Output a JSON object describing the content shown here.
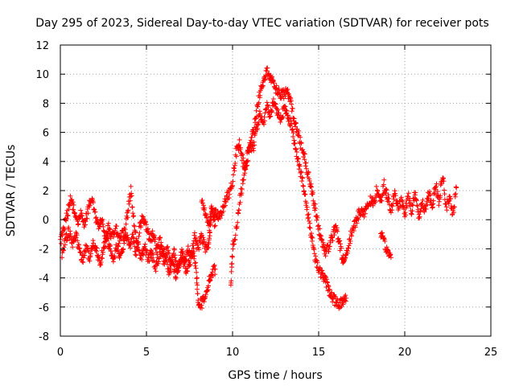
{
  "chart_data": {
    "type": "scatter",
    "title": "Day 295 of 2023, Sidereal Day-to-day VTEC variation (SDTVAR) for receiver pots",
    "xlabel": "GPS time / hours",
    "ylabel": "SDTVAR / TECUs",
    "xlim": [
      0,
      25
    ],
    "ylim": [
      -8,
      12
    ],
    "xticks": [
      0,
      5,
      10,
      15,
      20,
      25
    ],
    "yticks": [
      -8,
      -6,
      -4,
      -2,
      0,
      2,
      4,
      6,
      8,
      10,
      12
    ],
    "grid": true,
    "marker": "+",
    "color": "#ff0000",
    "series": [
      {
        "name": "SDTVAR",
        "trace_a": [
          [
            0.0,
            -1.6
          ],
          [
            0.2,
            -0.6
          ],
          [
            0.4,
            0.4
          ],
          [
            0.6,
            1.4
          ],
          [
            0.8,
            0.6
          ],
          [
            1.0,
            -0.4
          ],
          [
            1.2,
            0.4
          ],
          [
            1.4,
            -0.3
          ],
          [
            1.6,
            0.6
          ],
          [
            1.8,
            1.5
          ],
          [
            2.0,
            0.4
          ],
          [
            2.2,
            -0.4
          ],
          [
            2.4,
            0.2
          ],
          [
            2.6,
            -1.2
          ],
          [
            2.8,
            -0.6
          ],
          [
            3.0,
            -1.3
          ],
          [
            3.2,
            -0.4
          ],
          [
            3.4,
            -1.5
          ],
          [
            3.6,
            -0.8
          ],
          [
            3.8,
            -1.0
          ],
          [
            4.0,
            -1.8
          ],
          [
            4.2,
            -1.2
          ],
          [
            4.4,
            -2.4
          ],
          [
            4.6,
            -0.6
          ],
          [
            4.8,
            0.2
          ],
          [
            5.0,
            -0.5
          ],
          [
            5.2,
            -1.4
          ],
          [
            5.4,
            -1.0
          ],
          [
            5.6,
            -2.2
          ],
          [
            5.8,
            -1.4
          ],
          [
            6.0,
            -3.0
          ],
          [
            6.2,
            -2.0
          ],
          [
            6.4,
            -3.2
          ],
          [
            6.6,
            -2.0
          ],
          [
            6.8,
            -3.4
          ],
          [
            7.0,
            -2.6
          ],
          [
            7.2,
            -3.0
          ],
          [
            7.4,
            -2.0
          ],
          [
            7.6,
            -2.6
          ],
          [
            7.8,
            -1.2
          ],
          [
            8.0,
            -2.0
          ],
          [
            8.2,
            -1.0
          ],
          [
            8.4,
            -2.0
          ],
          [
            8.6,
            -1.6
          ],
          [
            8.7,
            -0.6
          ],
          [
            8.8,
            0.6
          ],
          [
            9.0,
            0.4
          ],
          [
            9.2,
            0.2
          ],
          [
            9.4,
            0.6
          ],
          [
            9.6,
            1.4
          ],
          [
            9.8,
            1.8
          ],
          [
            10.0,
            2.6
          ],
          [
            10.2,
            4.6
          ],
          [
            10.4,
            5.2
          ],
          [
            10.6,
            4.0
          ],
          [
            10.8,
            3.6
          ],
          [
            11.0,
            5.2
          ],
          [
            11.2,
            6.0
          ],
          [
            11.4,
            7.4
          ],
          [
            11.6,
            8.8
          ],
          [
            11.8,
            9.6
          ],
          [
            12.0,
            10.2
          ],
          [
            12.2,
            9.8
          ],
          [
            12.4,
            9.2
          ],
          [
            12.6,
            8.8
          ],
          [
            12.8,
            8.6
          ],
          [
            13.0,
            8.6
          ],
          [
            13.2,
            8.8
          ],
          [
            13.4,
            8.0
          ],
          [
            13.6,
            6.8
          ],
          [
            13.8,
            6.0
          ],
          [
            14.0,
            5.0
          ],
          [
            14.2,
            4.2
          ],
          [
            14.4,
            3.0
          ],
          [
            14.6,
            2.0
          ],
          [
            14.8,
            0.8
          ],
          [
            15.0,
            -0.6
          ],
          [
            15.2,
            -1.6
          ],
          [
            15.4,
            -2.2
          ],
          [
            15.6,
            -1.8
          ],
          [
            15.8,
            -1.2
          ],
          [
            16.0,
            -0.4
          ],
          [
            16.2,
            -1.6
          ],
          [
            16.4,
            -2.8
          ],
          [
            16.6,
            -2.4
          ],
          [
            16.8,
            -1.4
          ],
          [
            17.0,
            -0.6
          ],
          [
            17.2,
            0.0
          ],
          [
            17.4,
            0.6
          ],
          [
            17.6,
            0.4
          ],
          [
            17.8,
            1.0
          ],
          [
            18.0,
            1.4
          ],
          [
            18.2,
            1.0
          ],
          [
            18.4,
            2.2
          ],
          [
            18.6,
            1.2
          ],
          [
            18.8,
            2.4
          ],
          [
            19.0,
            1.6
          ],
          [
            19.2,
            0.6
          ],
          [
            19.4,
            1.8
          ],
          [
            19.6,
            0.8
          ],
          [
            19.8,
            1.4
          ],
          [
            20.0,
            0.4
          ],
          [
            20.2,
            1.6
          ],
          [
            20.4,
            0.6
          ],
          [
            20.6,
            1.8
          ],
          [
            20.8,
            0.2
          ],
          [
            21.0,
            1.2
          ],
          [
            21.2,
            0.6
          ],
          [
            21.4,
            1.8
          ],
          [
            21.6,
            1.0
          ],
          [
            21.8,
            2.4
          ],
          [
            22.0,
            1.2
          ],
          [
            22.2,
            3.2
          ],
          [
            22.4,
            0.8
          ],
          [
            22.6,
            1.6
          ],
          [
            22.8,
            0.4
          ],
          [
            23.0,
            2.2
          ]
        ],
        "trace_b": [
          [
            0.1,
            -2.4
          ],
          [
            0.3,
            -1.4
          ],
          [
            0.5,
            -0.8
          ],
          [
            0.7,
            -1.8
          ],
          [
            0.9,
            -1.0
          ],
          [
            1.1,
            -2.0
          ],
          [
            1.3,
            -2.8
          ],
          [
            1.5,
            -1.8
          ],
          [
            1.7,
            -2.6
          ],
          [
            1.9,
            -1.6
          ],
          [
            2.1,
            -2.2
          ],
          [
            2.3,
            -3.0
          ],
          [
            2.5,
            -2.0
          ],
          [
            2.7,
            -1.2
          ],
          [
            2.9,
            -2.0
          ],
          [
            3.1,
            -2.6
          ],
          [
            3.3,
            -1.8
          ],
          [
            3.5,
            -2.6
          ],
          [
            3.7,
            -1.6
          ],
          [
            3.9,
            0.4
          ],
          [
            4.1,
            2.0
          ],
          [
            4.3,
            -0.6
          ],
          [
            4.5,
            -1.8
          ],
          [
            4.7,
            -2.6
          ],
          [
            4.9,
            -1.8
          ],
          [
            5.1,
            -2.8
          ],
          [
            5.3,
            -2.2
          ],
          [
            5.5,
            -3.4
          ],
          [
            5.7,
            -2.6
          ],
          [
            5.9,
            -1.8
          ],
          [
            6.1,
            -2.6
          ],
          [
            6.3,
            -3.6
          ],
          [
            6.5,
            -2.8
          ],
          [
            6.7,
            -3.8
          ],
          [
            6.9,
            -3.0
          ],
          [
            7.1,
            -2.2
          ],
          [
            7.3,
            -3.6
          ],
          [
            7.5,
            -3.0
          ],
          [
            7.7,
            -2.2
          ],
          [
            7.9,
            -3.6
          ],
          [
            8.0,
            -5.6
          ],
          [
            8.2,
            -5.8
          ],
          [
            8.4,
            -5.2
          ],
          [
            8.6,
            -4.4
          ],
          [
            8.8,
            -3.6
          ],
          [
            9.0,
            -3.4
          ]
        ],
        "trace_c": [
          [
            9.9,
            -4.4
          ],
          [
            10.0,
            -2.0
          ],
          [
            10.2,
            -0.8
          ],
          [
            10.4,
            1.2
          ],
          [
            10.6,
            2.6
          ],
          [
            10.8,
            4.0
          ],
          [
            11.0,
            5.2
          ],
          [
            11.2,
            4.8
          ],
          [
            11.4,
            6.4
          ],
          [
            11.6,
            7.2
          ],
          [
            11.8,
            6.6
          ],
          [
            12.0,
            7.8
          ],
          [
            12.2,
            7.2
          ],
          [
            12.4,
            8.2
          ],
          [
            12.6,
            7.4
          ],
          [
            12.8,
            7.0
          ],
          [
            13.0,
            7.6
          ],
          [
            13.2,
            7.2
          ],
          [
            13.4,
            6.6
          ],
          [
            13.6,
            5.2
          ],
          [
            13.8,
            4.2
          ],
          [
            14.0,
            3.0
          ],
          [
            14.2,
            1.6
          ],
          [
            14.4,
            0.2
          ],
          [
            14.6,
            -1.2
          ],
          [
            14.8,
            -2.6
          ],
          [
            15.0,
            -3.4
          ],
          [
            15.2,
            -3.8
          ],
          [
            15.4,
            -4.2
          ],
          [
            15.6,
            -4.8
          ],
          [
            15.8,
            -5.4
          ],
          [
            16.0,
            -5.6
          ],
          [
            16.2,
            -5.8
          ],
          [
            16.4,
            -5.6
          ],
          [
            16.6,
            -5.4
          ]
        ],
        "trace_d": [
          [
            8.2,
            1.4
          ],
          [
            8.4,
            0.6
          ],
          [
            8.6,
            -0.4
          ],
          [
            8.8,
            0.8
          ],
          [
            9.0,
            -0.4
          ],
          [
            18.6,
            -1.0
          ],
          [
            18.8,
            -1.6
          ],
          [
            19.0,
            -2.2
          ],
          [
            19.2,
            -2.6
          ]
        ]
      }
    ]
  }
}
